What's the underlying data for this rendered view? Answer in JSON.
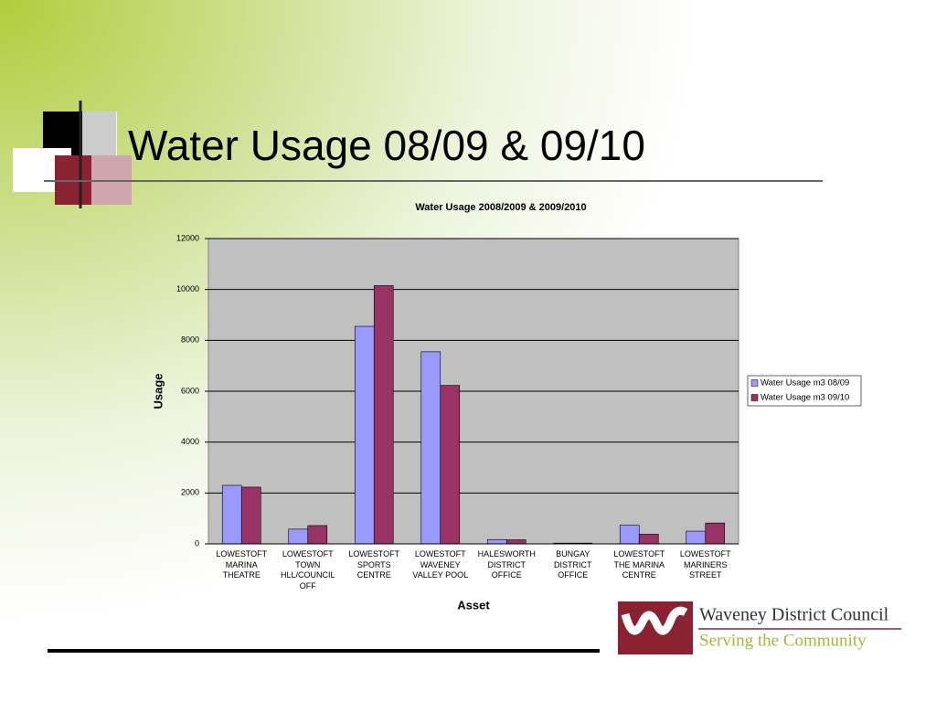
{
  "slide_title": "Water Usage 08/09 & 09/10",
  "logo": {
    "name": "Waveney District Council",
    "tagline": "Serving the Community"
  },
  "chart_data": {
    "type": "bar",
    "title": "Water Usage 2008/2009 & 2009/2010",
    "x_label": "Asset",
    "y_label": "Usage",
    "categories": [
      "LOWESTOFT MARINA THEATRE",
      "LOWESTOFT TOWN HLL/COUNCIL OFF",
      "LOWESTOFT SPORTS CENTRE",
      "LOWESTOFT WAVENEY VALLEY POOL",
      "HALESWORTH DISTRICT OFFICE",
      "BUNGAY DISTRICT OFFICE",
      "LOWESTOFT THE MARINA CENTRE",
      "LOWESTOFT MARINERS STREET"
    ],
    "series": [
      {
        "name": "Water Usage m3 08/09",
        "color": "#9999ff",
        "values": [
          2300,
          580,
          8550,
          7550,
          170,
          30,
          730,
          500
        ]
      },
      {
        "name": "Water Usage m3 09/10",
        "color": "#993366",
        "values": [
          2230,
          720,
          10150,
          6230,
          160,
          30,
          380,
          820
        ]
      }
    ],
    "ylim": [
      0,
      12000
    ],
    "yticks": [
      0,
      2000,
      4000,
      6000,
      8000,
      10000,
      12000
    ],
    "grid": true,
    "legend": "right"
  }
}
